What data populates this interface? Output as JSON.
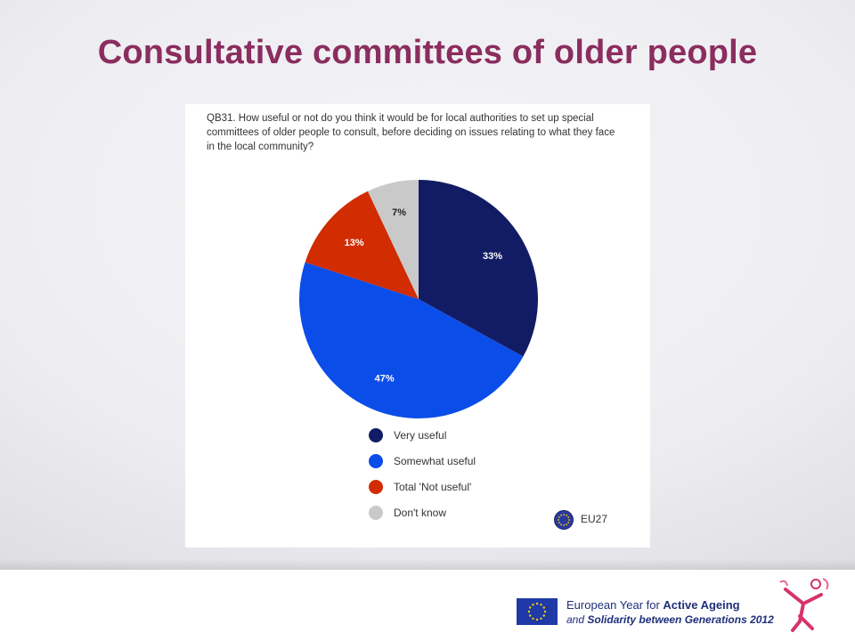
{
  "slide": {
    "title": "Consultative committees of older people"
  },
  "chart_data": {
    "type": "pie",
    "title": "QB31. How useful or not do you think it would be for local authorities to set up special committees of older people to consult, before deciding on issues relating to what they face in the local community?",
    "slices": [
      {
        "label": "Very useful",
        "value": 33,
        "display": "33%",
        "color": "#121c64"
      },
      {
        "label": "Somewhat useful",
        "value": 47,
        "display": "47%",
        "color": "#0b4de8"
      },
      {
        "label": "Total 'Not useful'",
        "value": 13,
        "display": "13%",
        "color": "#d12c02"
      },
      {
        "label": "Don't know",
        "value": 7,
        "display": "7%",
        "color": "#c9c9c9"
      }
    ],
    "legend_position": "bottom",
    "region_label": "EU27"
  },
  "footer": {
    "logo_line1_prefix": "European Year for ",
    "logo_line1_bold": "Active Ageing",
    "logo_line2_prefix": "and ",
    "logo_line2_bold": "Solidarity between Generations",
    "logo_line2_suffix": " 2012"
  },
  "icons": {
    "eu_flag": "eu-flag-icon",
    "active_ageing_figure": "active-ageing-figure-icon"
  }
}
